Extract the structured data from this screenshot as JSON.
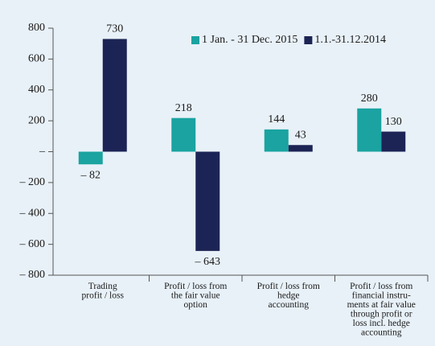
{
  "chart_data": {
    "type": "bar",
    "categories": [
      [
        "Trading",
        "profit / loss"
      ],
      [
        "Profit / loss from",
        "the fair value",
        "option"
      ],
      [
        "Profit / loss from",
        "hedge",
        "accounting"
      ],
      [
        "Profit / loss from",
        "financial instru-",
        "ments at fair value",
        "through profit or",
        "loss incl. hedge",
        "accounting"
      ]
    ],
    "series": [
      {
        "name": "1 Jan. - 31 Dec. 2015",
        "color": "#1aa3a0",
        "values": [
          -82,
          218,
          144,
          280
        ],
        "value_labels": [
          "– 82",
          "218",
          "144",
          "280"
        ]
      },
      {
        "name": "1.1.-31.12.2014",
        "color": "#1c2455",
        "values": [
          730,
          -643,
          43,
          130
        ],
        "value_labels": [
          "730",
          "– 643",
          "43",
          "130"
        ]
      }
    ],
    "ylim": [
      -800,
      800
    ],
    "yticks": [
      {
        "value": -800,
        "label": "– 800"
      },
      {
        "value": -600,
        "label": "– 600"
      },
      {
        "value": -400,
        "label": "– 400"
      },
      {
        "value": -200,
        "label": "– 200"
      },
      {
        "value": 0,
        "label": "–"
      },
      200,
      400,
      600,
      800
    ],
    "legend": "top-right"
  }
}
